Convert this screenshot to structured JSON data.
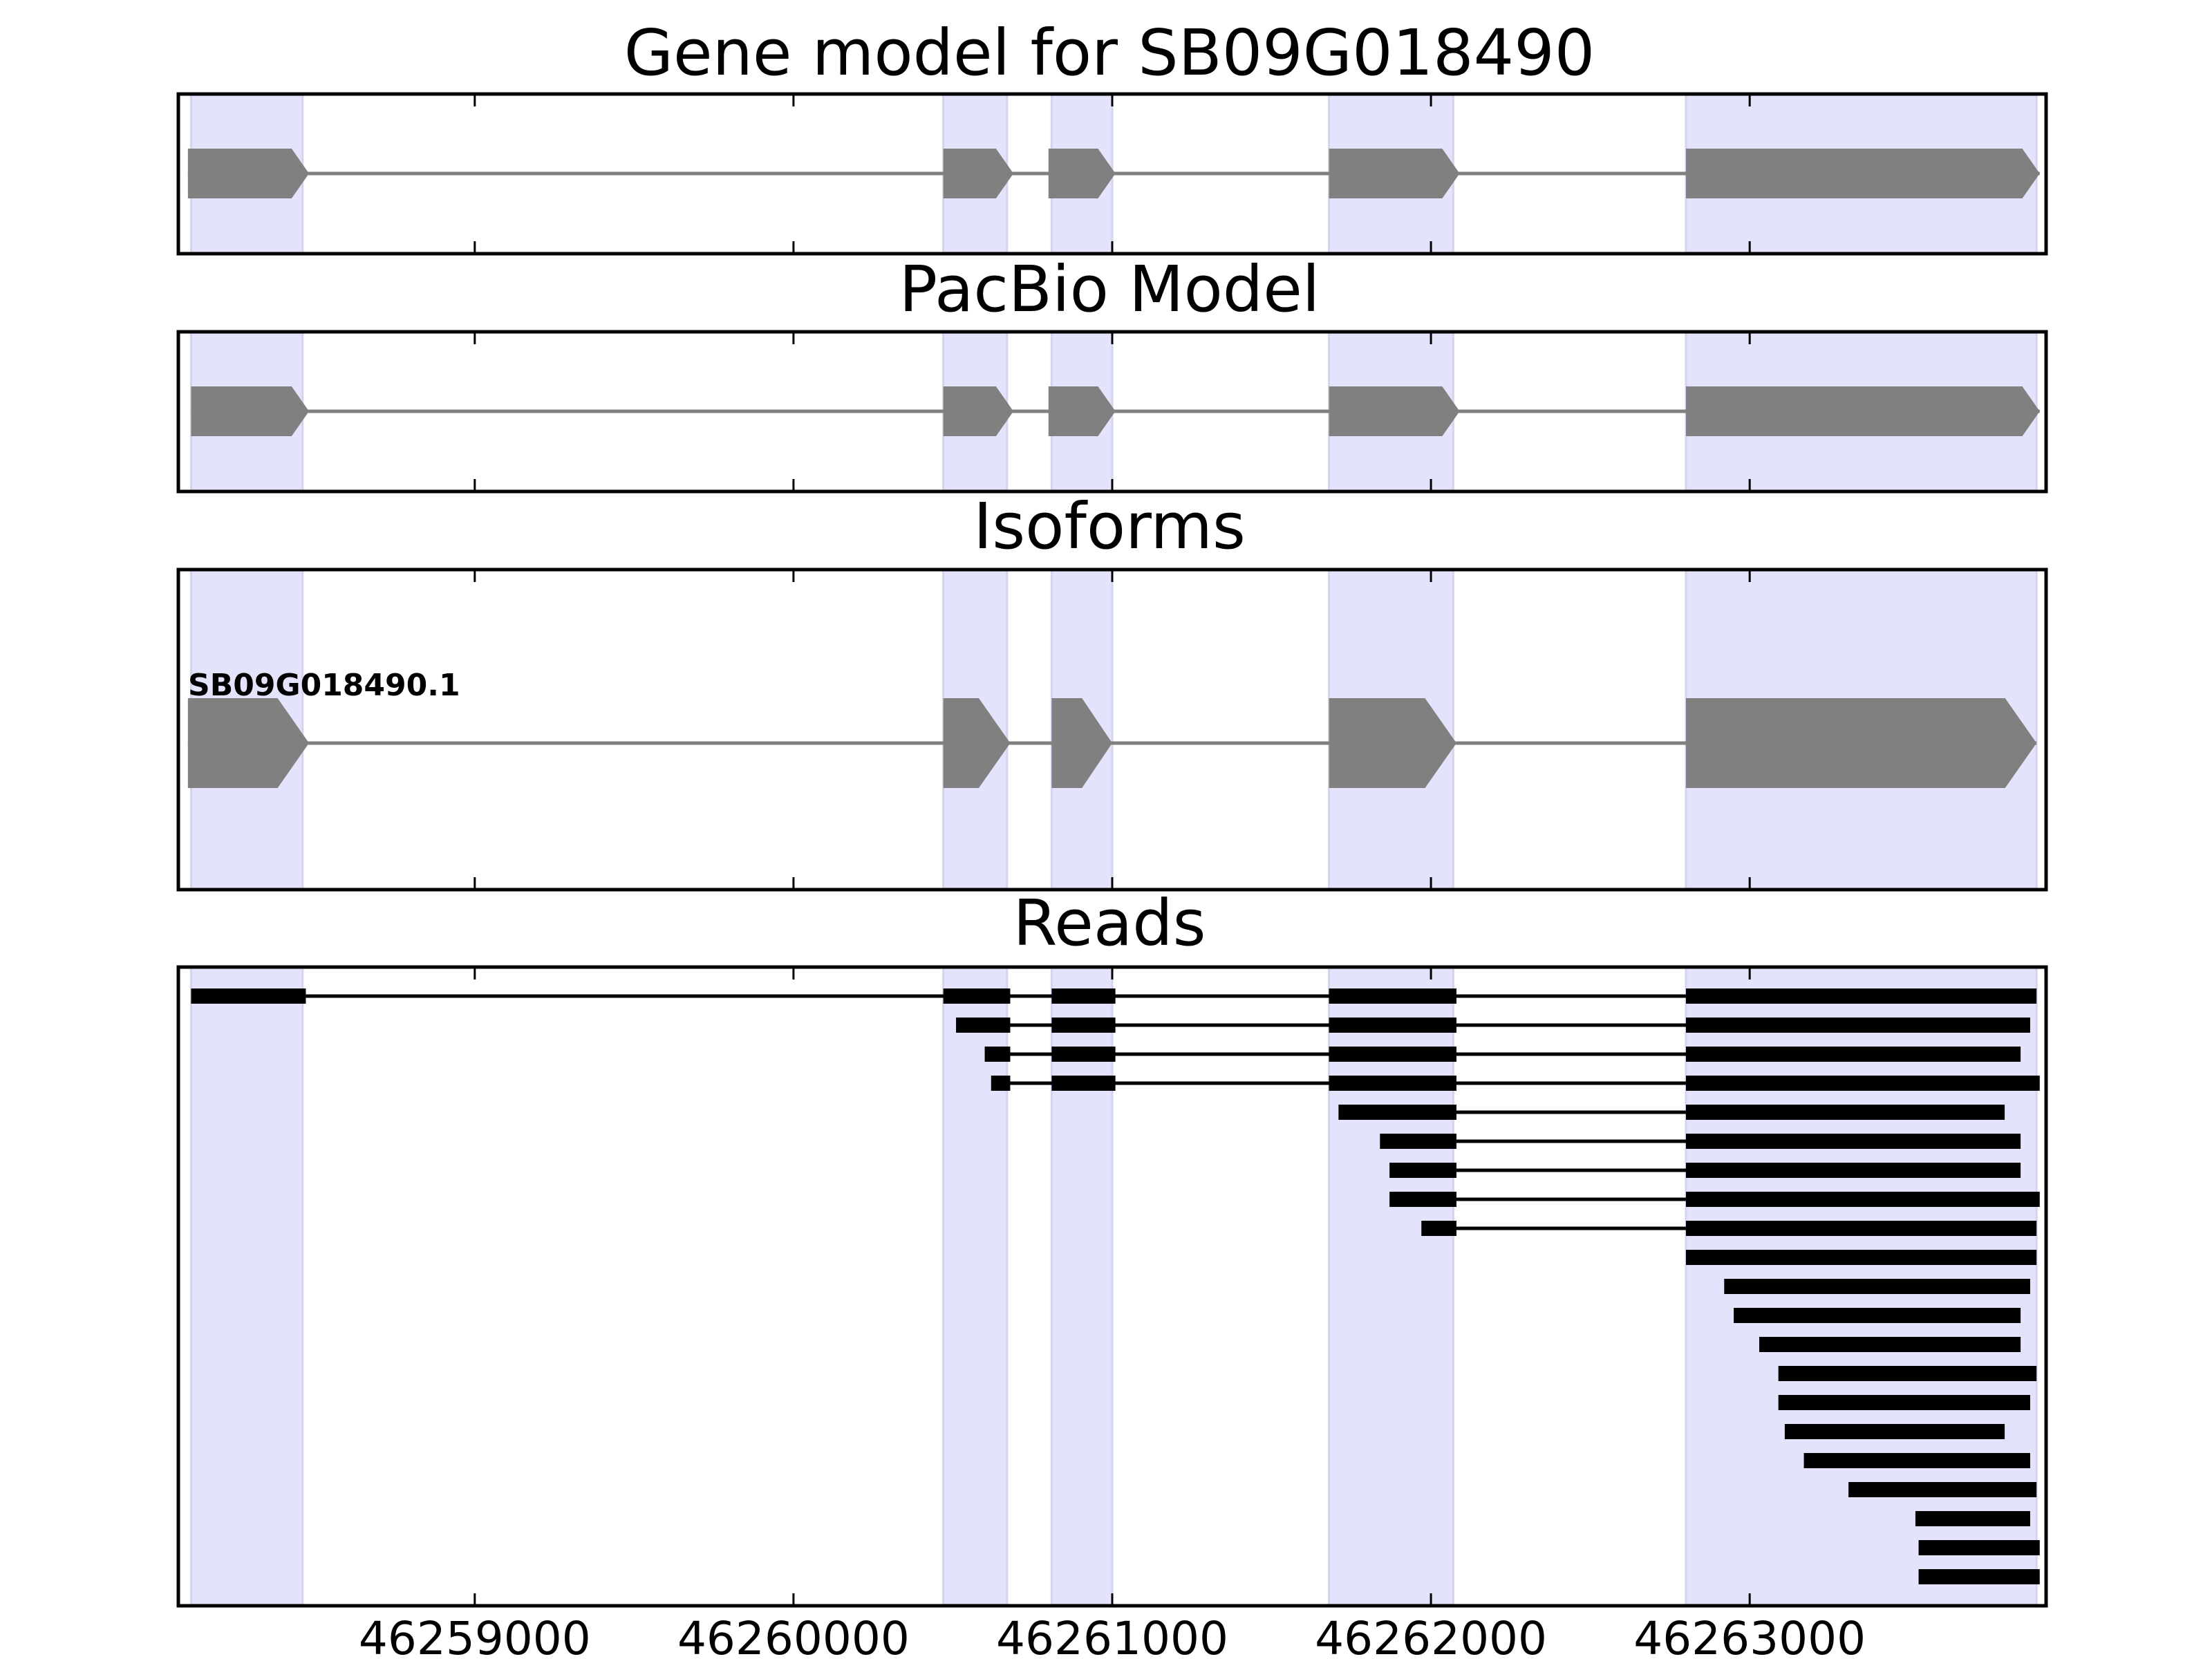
{
  "chart_data": {
    "type": "gene-structure",
    "xlim": [
      46258070,
      46263930
    ],
    "x_ticks": [
      46259000,
      46260000,
      46261000,
      46262000,
      46263000
    ],
    "x_tick_labels": [
      "46259000",
      "46260000",
      "46261000",
      "46262000",
      "46263000"
    ],
    "highlight_color": "#e3e3fc",
    "exon_color": "#808080",
    "read_color": "#000000",
    "exon_regions": [
      [
        46258110,
        46258460
      ],
      [
        46260470,
        46260670
      ],
      [
        46260810,
        46261000
      ],
      [
        46261680,
        46262070
      ],
      [
        46262800,
        46263900
      ]
    ],
    "panels": [
      {
        "title": "Gene model for SB09G018490",
        "features": [
          {
            "label": "",
            "exons": [
              [
                46258100,
                46258480
              ],
              [
                46260470,
                46260690
              ],
              [
                46260800,
                46261010
              ],
              [
                46261680,
                46262090
              ],
              [
                46262800,
                46263910
              ]
            ]
          }
        ]
      },
      {
        "title": "PacBio Model",
        "features": [
          {
            "label": "",
            "exons": [
              [
                46258110,
                46258480
              ],
              [
                46260470,
                46260690
              ],
              [
                46260800,
                46261010
              ],
              [
                46261680,
                46262090
              ],
              [
                46262800,
                46263910
              ]
            ]
          }
        ]
      },
      {
        "title": "Isoforms",
        "features": [
          {
            "label": "SB09G018490.1",
            "exons": [
              [
                46258100,
                46258480
              ],
              [
                46260470,
                46260680
              ],
              [
                46260810,
                46261000
              ],
              [
                46261680,
                46262080
              ],
              [
                46262800,
                46263900
              ]
            ]
          }
        ]
      },
      {
        "title": "Reads",
        "reads": [
          [
            [
              46258110,
              46258470
            ],
            [
              46260470,
              46260680
            ],
            [
              46260810,
              46261010
            ],
            [
              46261680,
              46262080
            ],
            [
              46262800,
              46263900
            ]
          ],
          [
            [
              46260510,
              46260680
            ],
            [
              46260810,
              46261010
            ],
            [
              46261680,
              46262080
            ],
            [
              46262800,
              46263880
            ]
          ],
          [
            [
              46260600,
              46260680
            ],
            [
              46260810,
              46261010
            ],
            [
              46261680,
              46262080
            ],
            [
              46262800,
              46263850
            ]
          ],
          [
            [
              46260620,
              46260680
            ],
            [
              46260810,
              46261010
            ],
            [
              46261680,
              46262080
            ],
            [
              46262800,
              46263910
            ]
          ],
          [
            [
              46261710,
              46262080
            ],
            [
              46262800,
              46263800
            ]
          ],
          [
            [
              46261840,
              46262080
            ],
            [
              46262800,
              46263850
            ]
          ],
          [
            [
              46261870,
              46262080
            ],
            [
              46262800,
              46263850
            ]
          ],
          [
            [
              46261870,
              46262080
            ],
            [
              46262800,
              46263910
            ]
          ],
          [
            [
              46261970,
              46262080
            ],
            [
              46262800,
              46263900
            ]
          ],
          [
            [
              46262800,
              46263900
            ]
          ],
          [
            [
              46262920,
              46263880
            ]
          ],
          [
            [
              46262950,
              46263850
            ]
          ],
          [
            [
              46263030,
              46263850
            ]
          ],
          [
            [
              46263090,
              46263900
            ]
          ],
          [
            [
              46263090,
              46263880
            ]
          ],
          [
            [
              46263110,
              46263800
            ]
          ],
          [
            [
              46263170,
              46263880
            ]
          ],
          [
            [
              46263310,
              46263900
            ]
          ],
          [
            [
              46263520,
              46263880
            ]
          ],
          [
            [
              46263530,
              46263910
            ]
          ],
          [
            [
              46263530,
              46263910
            ]
          ]
        ]
      }
    ]
  }
}
